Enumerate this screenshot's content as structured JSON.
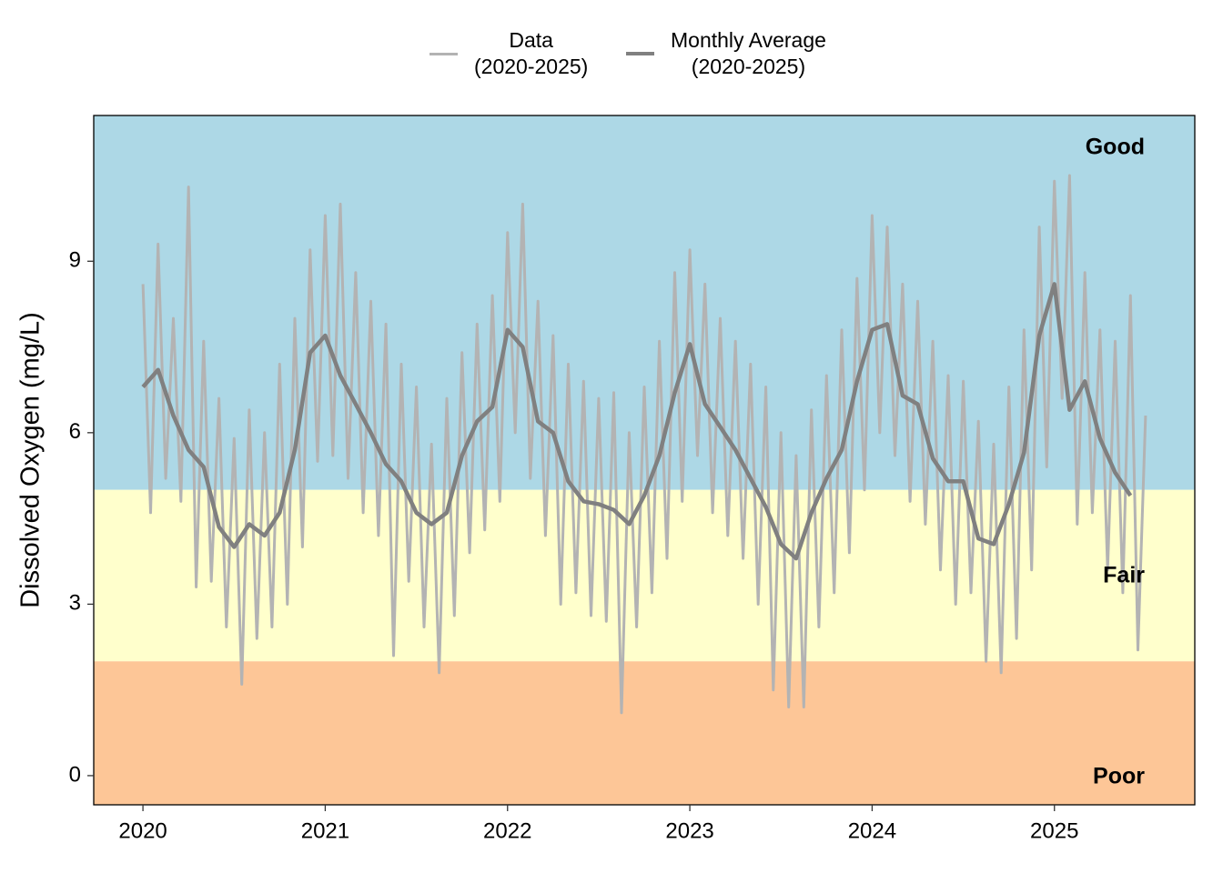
{
  "chart_data": {
    "type": "line",
    "y_label": "Dissolved Oxygen (mg/L)",
    "xlim": [
      2019.73,
      2025.77
    ],
    "xticks": [
      2020,
      2021,
      2022,
      2023,
      2024,
      2025
    ],
    "ylim": [
      -0.51,
      11.55
    ],
    "yticks": [
      0,
      3,
      6,
      9
    ],
    "zones": [
      {
        "label": "Good",
        "from": 5,
        "to": 11.55,
        "color": "#add8e6"
      },
      {
        "label": "Fair",
        "from": 2,
        "to": 5,
        "color": "#ffffcc"
      },
      {
        "label": "Poor",
        "from": -0.51,
        "to": 2,
        "color": "#fdc697"
      }
    ],
    "series": [
      {
        "name": "Data\n(2020-2025)",
        "color": "#b3b3b3",
        "width": 3,
        "x": [
          2020.0,
          2020.042,
          2020.083,
          2020.125,
          2020.167,
          2020.208,
          2020.25,
          2020.292,
          2020.333,
          2020.375,
          2020.417,
          2020.458,
          2020.5,
          2020.542,
          2020.583,
          2020.625,
          2020.667,
          2020.708,
          2020.75,
          2020.792,
          2020.833,
          2020.875,
          2020.917,
          2020.958,
          2021.0,
          2021.042,
          2021.083,
          2021.125,
          2021.167,
          2021.208,
          2021.25,
          2021.292,
          2021.333,
          2021.375,
          2021.417,
          2021.458,
          2021.5,
          2021.542,
          2021.583,
          2021.625,
          2021.667,
          2021.708,
          2021.75,
          2021.792,
          2021.833,
          2021.875,
          2021.917,
          2021.958,
          2022.0,
          2022.042,
          2022.083,
          2022.125,
          2022.167,
          2022.208,
          2022.25,
          2022.292,
          2022.333,
          2022.375,
          2022.417,
          2022.458,
          2022.5,
          2022.542,
          2022.583,
          2022.625,
          2022.667,
          2022.708,
          2022.75,
          2022.792,
          2022.833,
          2022.875,
          2022.917,
          2022.958,
          2023.0,
          2023.042,
          2023.083,
          2023.125,
          2023.167,
          2023.208,
          2023.25,
          2023.292,
          2023.333,
          2023.375,
          2023.417,
          2023.458,
          2023.5,
          2023.542,
          2023.583,
          2023.625,
          2023.667,
          2023.708,
          2023.75,
          2023.792,
          2023.833,
          2023.875,
          2023.917,
          2023.958,
          2024.0,
          2024.042,
          2024.083,
          2024.125,
          2024.167,
          2024.208,
          2024.25,
          2024.292,
          2024.333,
          2024.375,
          2024.417,
          2024.458,
          2024.5,
          2024.542,
          2024.583,
          2024.625,
          2024.667,
          2024.708,
          2024.75,
          2024.792,
          2024.833,
          2024.875,
          2024.917,
          2024.958,
          2025.0,
          2025.042,
          2025.083,
          2025.125,
          2025.167,
          2025.208,
          2025.25,
          2025.292,
          2025.333,
          2025.375,
          2025.417,
          2025.458,
          2025.5
        ],
        "values": [
          8.6,
          4.6,
          9.3,
          5.2,
          8.0,
          4.8,
          10.3,
          3.3,
          7.6,
          3.4,
          6.6,
          2.6,
          5.9,
          1.6,
          6.4,
          2.4,
          6.0,
          2.6,
          7.2,
          3.0,
          8.0,
          4.0,
          9.2,
          5.5,
          9.8,
          5.6,
          10.0,
          5.2,
          8.8,
          4.6,
          8.3,
          4.2,
          7.9,
          2.1,
          7.2,
          3.4,
          6.8,
          2.6,
          5.8,
          1.8,
          6.6,
          2.8,
          7.4,
          3.9,
          7.9,
          4.3,
          8.4,
          4.8,
          9.5,
          6.0,
          10.0,
          5.2,
          8.3,
          4.2,
          7.7,
          3.0,
          7.2,
          3.2,
          6.9,
          2.8,
          6.6,
          2.7,
          6.7,
          1.1,
          6.0,
          2.6,
          6.8,
          3.2,
          7.6,
          3.8,
          8.8,
          4.8,
          9.2,
          5.6,
          8.6,
          4.6,
          8.0,
          4.2,
          7.6,
          3.8,
          7.2,
          3.0,
          6.8,
          1.5,
          6.0,
          1.2,
          5.6,
          1.2,
          6.4,
          2.6,
          7.0,
          3.2,
          7.8,
          3.9,
          8.7,
          5.0,
          9.8,
          6.0,
          9.6,
          5.6,
          8.6,
          4.8,
          8.3,
          4.4,
          7.6,
          3.6,
          7.0,
          3.0,
          6.9,
          3.2,
          6.2,
          2.0,
          5.8,
          1.8,
          6.8,
          2.4,
          7.8,
          3.6,
          9.6,
          5.4,
          10.4,
          6.6,
          10.5,
          4.4,
          8.8,
          4.6,
          7.8,
          3.6,
          7.6,
          3.2,
          8.4,
          2.2,
          6.3
        ]
      },
      {
        "name": "Monthly Average\n(2020-2025)",
        "color": "#808080",
        "width": 4.5,
        "x": [
          2020.0,
          2020.083,
          2020.167,
          2020.25,
          2020.333,
          2020.417,
          2020.5,
          2020.583,
          2020.667,
          2020.75,
          2020.833,
          2020.917,
          2021.0,
          2021.083,
          2021.167,
          2021.25,
          2021.333,
          2021.417,
          2021.5,
          2021.583,
          2021.667,
          2021.75,
          2021.833,
          2021.917,
          2022.0,
          2022.083,
          2022.167,
          2022.25,
          2022.333,
          2022.417,
          2022.5,
          2022.583,
          2022.667,
          2022.75,
          2022.833,
          2022.917,
          2023.0,
          2023.083,
          2023.167,
          2023.25,
          2023.333,
          2023.417,
          2023.5,
          2023.583,
          2023.667,
          2023.75,
          2023.833,
          2023.917,
          2024.0,
          2024.083,
          2024.167,
          2024.25,
          2024.333,
          2024.417,
          2024.5,
          2024.583,
          2024.667,
          2024.75,
          2024.833,
          2024.917,
          2025.0,
          2025.083,
          2025.167,
          2025.25,
          2025.333,
          2025.417
        ],
        "values": [
          6.8,
          7.1,
          6.3,
          5.7,
          5.4,
          4.35,
          4.0,
          4.4,
          4.2,
          4.6,
          5.7,
          7.4,
          7.7,
          7.0,
          6.5,
          6.0,
          5.45,
          5.15,
          4.6,
          4.4,
          4.6,
          5.6,
          6.2,
          6.45,
          7.8,
          7.5,
          6.2,
          6.0,
          5.15,
          4.8,
          4.75,
          4.65,
          4.4,
          4.9,
          5.6,
          6.7,
          7.55,
          6.5,
          6.1,
          5.7,
          5.2,
          4.7,
          4.05,
          3.8,
          4.6,
          5.2,
          5.7,
          6.9,
          7.8,
          7.9,
          6.65,
          6.5,
          5.55,
          5.15,
          5.15,
          4.15,
          4.05,
          4.75,
          5.65,
          7.7,
          8.6,
          6.4,
          6.9,
          5.9,
          5.3,
          4.9
        ]
      }
    ]
  }
}
